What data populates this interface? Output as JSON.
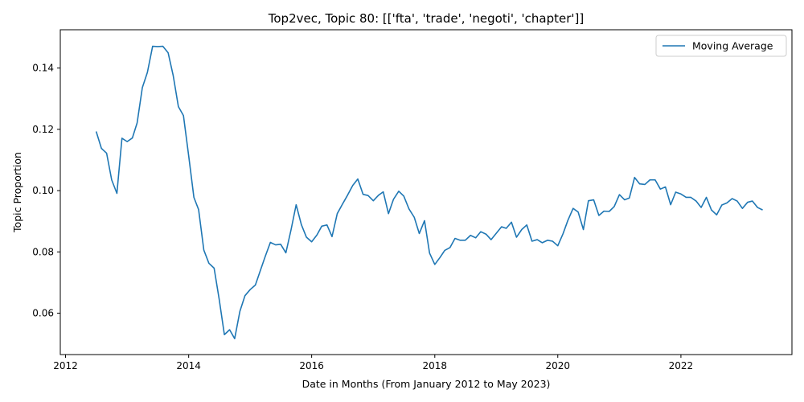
{
  "chart_data": {
    "type": "line",
    "title": "Top2vec, Topic 80: [['fta', 'trade', 'negoti', 'chapter']]",
    "xlabel": "Date in Months (From January 2012 to May 2023)",
    "ylabel": "Topic Proportion",
    "xlim": [
      "2011-12-01",
      "2023-10-22"
    ],
    "ylim": [
      0.0465,
      0.1525
    ],
    "xticks": [
      {
        "value": "2012-01-01",
        "label": "2012"
      },
      {
        "value": "2014-01-01",
        "label": "2014"
      },
      {
        "value": "2016-01-01",
        "label": "2016"
      },
      {
        "value": "2018-01-01",
        "label": "2018"
      },
      {
        "value": "2020-01-01",
        "label": "2020"
      },
      {
        "value": "2022-01-01",
        "label": "2022"
      }
    ],
    "yticks": [
      0.06,
      0.08,
      0.1,
      0.12,
      0.14
    ],
    "grid": false,
    "legend": {
      "position": "top-right"
    },
    "series": [
      {
        "name": "Moving Average",
        "color": "#1f77b4",
        "start": "2012-07",
        "x": [
          "2012-07",
          "2012-08",
          "2012-09",
          "2012-10",
          "2012-11",
          "2012-12",
          "2013-01",
          "2013-02",
          "2013-03",
          "2013-04",
          "2013-05",
          "2013-06",
          "2013-07",
          "2013-08",
          "2013-09",
          "2013-10",
          "2013-11",
          "2013-12",
          "2014-01",
          "2014-02",
          "2014-03",
          "2014-04",
          "2014-05",
          "2014-06",
          "2014-07",
          "2014-08",
          "2014-09",
          "2014-10",
          "2014-11",
          "2014-12",
          "2015-01",
          "2015-02",
          "2015-03",
          "2015-04",
          "2015-05",
          "2015-06",
          "2015-07",
          "2015-08",
          "2015-09",
          "2015-10",
          "2015-11",
          "2015-12",
          "2016-01",
          "2016-02",
          "2016-03",
          "2016-04",
          "2016-05",
          "2016-06",
          "2016-07",
          "2016-08",
          "2016-09",
          "2016-10",
          "2016-11",
          "2016-12",
          "2017-01",
          "2017-02",
          "2017-03",
          "2017-04",
          "2017-05",
          "2017-06",
          "2017-07",
          "2017-08",
          "2017-09",
          "2017-10",
          "2017-11",
          "2017-12",
          "2018-01",
          "2018-02",
          "2018-03",
          "2018-04",
          "2018-05",
          "2018-06",
          "2018-07",
          "2018-08",
          "2018-09",
          "2018-10",
          "2018-11",
          "2018-12",
          "2019-01",
          "2019-02",
          "2019-03",
          "2019-04",
          "2019-05",
          "2019-06",
          "2019-07",
          "2019-08",
          "2019-09",
          "2019-10",
          "2019-11",
          "2019-12",
          "2020-01",
          "2020-02",
          "2020-03",
          "2020-04",
          "2020-05",
          "2020-06",
          "2020-07",
          "2020-08",
          "2020-09",
          "2020-10",
          "2020-11",
          "2020-12",
          "2021-01",
          "2021-02",
          "2021-03",
          "2021-04",
          "2021-05",
          "2021-06",
          "2021-07",
          "2021-08",
          "2021-09",
          "2021-10",
          "2021-11",
          "2021-12",
          "2022-01",
          "2022-02",
          "2022-03",
          "2022-04",
          "2022-05",
          "2022-06",
          "2022-07",
          "2022-08",
          "2022-09",
          "2022-10",
          "2022-11",
          "2022-12",
          "2023-01",
          "2023-02",
          "2023-03",
          "2023-04",
          "2023-05"
        ],
        "values": [
          0.1193,
          0.1138,
          0.1122,
          0.1035,
          0.0991,
          0.1171,
          0.116,
          0.1172,
          0.1221,
          0.1336,
          0.1386,
          0.1471,
          0.147,
          0.1471,
          0.145,
          0.1376,
          0.1274,
          0.1245,
          0.1114,
          0.0978,
          0.0938,
          0.0806,
          0.0763,
          0.0747,
          0.0646,
          0.053,
          0.0546,
          0.0517,
          0.0606,
          0.0657,
          0.0677,
          0.0692,
          0.0737,
          0.0786,
          0.0831,
          0.0823,
          0.0825,
          0.0797,
          0.0873,
          0.0954,
          0.0889,
          0.0848,
          0.0833,
          0.0855,
          0.0884,
          0.0888,
          0.085,
          0.0925,
          0.0955,
          0.0985,
          0.1017,
          0.1038,
          0.0988,
          0.0984,
          0.0967,
          0.0985,
          0.0996,
          0.0925,
          0.0972,
          0.0998,
          0.0982,
          0.094,
          0.0913,
          0.086,
          0.0902,
          0.0796,
          0.0759,
          0.0782,
          0.0805,
          0.0814,
          0.0844,
          0.0838,
          0.0838,
          0.0854,
          0.0846,
          0.0866,
          0.0858,
          0.084,
          0.0861,
          0.0882,
          0.0877,
          0.0897,
          0.0848,
          0.0873,
          0.0888,
          0.0835,
          0.084,
          0.083,
          0.0838,
          0.0835,
          0.082,
          0.0859,
          0.0903,
          0.0942,
          0.093,
          0.0873,
          0.0967,
          0.097,
          0.0919,
          0.0933,
          0.0932,
          0.0948,
          0.0987,
          0.097,
          0.0976,
          0.1043,
          0.1022,
          0.102,
          0.1035,
          0.1035,
          0.1005,
          0.1012,
          0.0954,
          0.0995,
          0.0989,
          0.0978,
          0.0978,
          0.0966,
          0.0945,
          0.0978,
          0.0937,
          0.0921,
          0.0953,
          0.096,
          0.0974,
          0.0966,
          0.0942,
          0.0962,
          0.0966,
          0.0945,
          0.0937
        ]
      }
    ]
  }
}
